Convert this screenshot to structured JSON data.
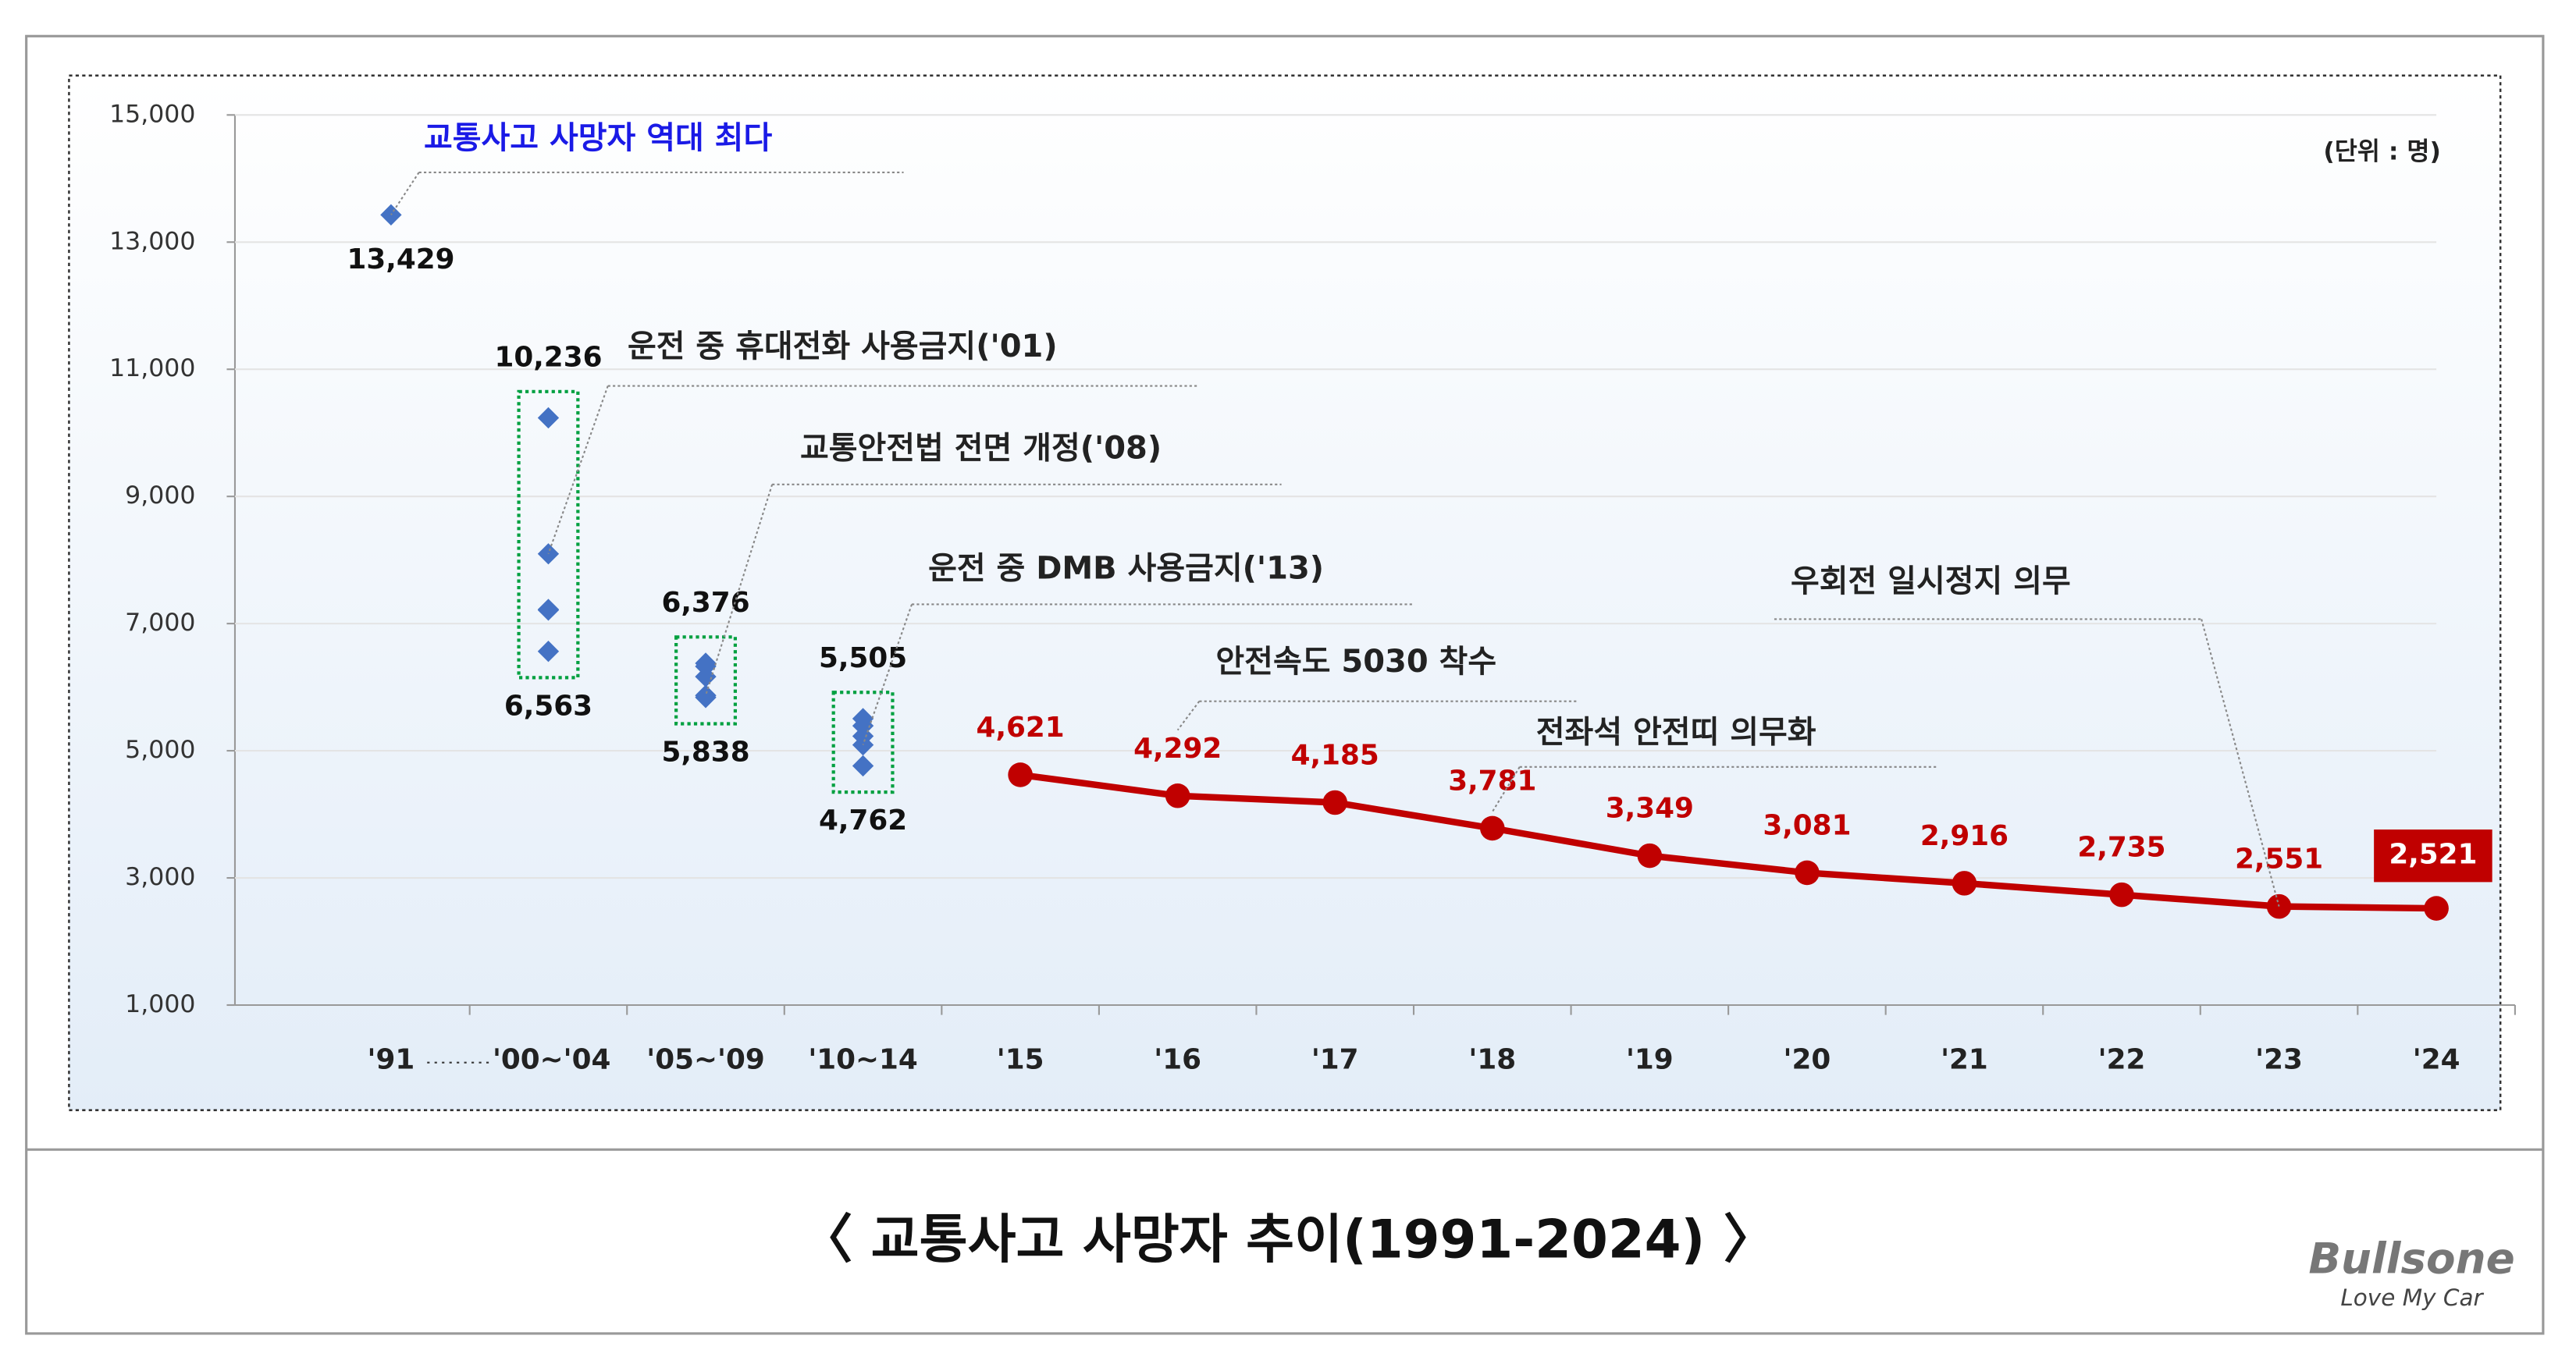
{
  "chart_data": {
    "type": "scatter-line",
    "unit_label": "(단위 : 명)",
    "caption": "〈 교통사고 사망자 추이(1991-2024) 〉",
    "brand": {
      "name": "Bullsone",
      "slogan": "Love My Car"
    },
    "categories": [
      "'91",
      "'00~'04",
      "'05~'09",
      "'10~14",
      "'15",
      "'16",
      "'17",
      "'18",
      "'19",
      "'20",
      "'21",
      "'22",
      "'23",
      "'24"
    ],
    "ylim": [
      1000,
      15000
    ],
    "yticks": [
      {
        "value": 1000,
        "label": "1,000"
      },
      {
        "value": 3000,
        "label": "3,000"
      },
      {
        "value": 5000,
        "label": "5,000"
      },
      {
        "value": 7000,
        "label": "7,000"
      },
      {
        "value": 9000,
        "label": "9,000"
      },
      {
        "value": 11000,
        "label": "11,000"
      },
      {
        "value": 13000,
        "label": "13,000"
      },
      {
        "value": 15000,
        "label": "15,000"
      }
    ],
    "groups": [
      {
        "category": 0,
        "values": [
          13429
        ],
        "value_labels": [
          "13,429"
        ]
      },
      {
        "category": 1,
        "values": [
          10236,
          8097,
          7222,
          7212,
          6563
        ],
        "value_labels": [
          "10,236",
          null,
          null,
          null,
          "6,563"
        ]
      },
      {
        "category": 2,
        "values": [
          6376,
          6327,
          6166,
          5870,
          5838
        ],
        "value_labels": [
          "6,376",
          null,
          null,
          null,
          "5,838"
        ]
      },
      {
        "category": 3,
        "values": [
          5505,
          5392,
          5229,
          5092,
          4762
        ],
        "value_labels": [
          "5,505",
          null,
          null,
          null,
          "4,762"
        ]
      }
    ],
    "group_color": "#4472c4",
    "line": {
      "start_category": 4,
      "color": "#c00000",
      "values": [
        4621,
        4292,
        4185,
        3781,
        3349,
        3081,
        2916,
        2735,
        2551,
        2521
      ],
      "value_labels": [
        "4,621",
        "4,292",
        "4,185",
        "3,781",
        "3,349",
        "3,081",
        "2,916",
        "2,735",
        "2,551",
        "2,521"
      ]
    },
    "annotations": [
      "교통사고 사망자 역대 최다",
      "운전 중 휴대전화 사용금지('01)",
      "교통안전법 전면 개정('08)",
      "운전 중 DMB 사용금지('13)",
      "안전속도 5030 착수",
      "전좌석 안전띠 의무화",
      "우회전 일시정지 의무"
    ]
  }
}
